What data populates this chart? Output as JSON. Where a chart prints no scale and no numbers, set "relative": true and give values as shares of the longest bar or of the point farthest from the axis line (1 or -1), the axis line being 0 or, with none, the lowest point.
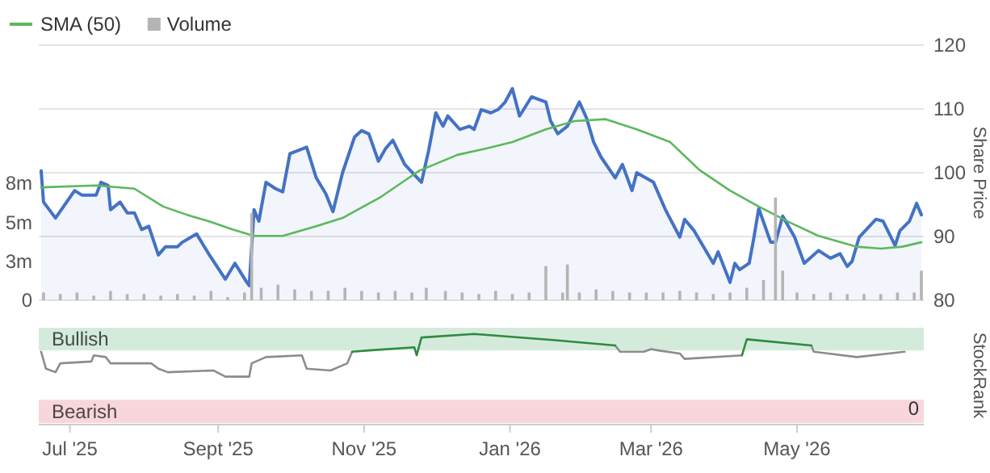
{
  "chart_data": [
    {
      "type": "line",
      "ylabel": "Share Price",
      "xlim": [
        "2025-06-18",
        "2026-06-23"
      ],
      "ylim": [
        80,
        120
      ],
      "yticks": [
        80,
        90,
        100,
        110,
        120
      ],
      "y2lim": [
        0,
        16.4
      ],
      "y2ticks": [
        0,
        {
          "value": 2.5,
          "label": "3m"
        },
        {
          "value": 5,
          "label": "5m"
        },
        {
          "value": 7.5,
          "label": "8m"
        }
      ],
      "grid": "y",
      "legend": "top left",
      "tick_labels": "y",
      "series": [
        {
          "type": "area",
          "color": "#4472c4",
          "x": [
            "2025-06-19",
            "2025-06-20",
            "2025-06-25",
            "2025-07-03",
            "2025-07-06",
            "2025-07-12",
            "2025-07-14",
            "2025-07-17",
            "2025-07-18",
            "2025-07-22",
            "2025-07-25",
            "2025-07-28",
            "2025-07-31",
            "2025-08-03",
            "2025-08-07",
            "2025-08-10",
            "2025-08-15",
            "2025-08-17",
            "2025-08-23",
            "2025-08-28",
            "2025-09-04",
            "2025-09-08",
            "2025-09-13",
            "2025-09-14",
            "2025-09-16",
            "2025-09-18",
            "2025-09-21",
            "2025-09-25",
            "2025-09-28",
            "2025-10-01",
            "2025-10-08",
            "2025-10-12",
            "2025-10-16",
            "2025-10-19",
            "2025-10-23",
            "2025-10-28",
            "2025-10-31",
            "2025-11-03",
            "2025-11-07",
            "2025-11-10",
            "2025-11-13",
            "2025-11-18",
            "2025-11-25",
            "2025-11-28",
            "2025-12-01",
            "2025-12-04",
            "2025-12-06",
            "2025-12-11",
            "2025-12-15",
            "2025-12-17",
            "2025-12-20",
            "2025-12-24",
            "2025-12-27",
            "2025-12-30",
            "2026-01-02",
            "2026-01-05",
            "2026-01-10",
            "2026-01-16",
            "2026-01-18",
            "2026-01-21",
            "2026-01-25",
            "2026-01-30",
            "2026-02-02",
            "2026-02-05",
            "2026-02-08",
            "2026-02-14",
            "2026-02-17",
            "2026-02-21",
            "2026-02-23",
            "2026-03-02",
            "2026-03-07",
            "2026-03-13",
            "2026-03-15",
            "2026-03-19",
            "2026-03-27",
            "2026-03-29",
            "2026-04-03",
            "2026-04-05",
            "2026-04-07",
            "2026-04-11",
            "2026-04-13",
            "2026-04-15",
            "2026-04-20",
            "2026-04-22",
            "2026-04-25",
            "2026-04-30",
            "2026-05-04",
            "2026-05-10",
            "2026-05-15",
            "2026-05-19",
            "2026-05-22",
            "2026-05-24",
            "2026-05-27",
            "2026-06-03",
            "2026-06-06",
            "2026-06-11",
            "2026-06-13",
            "2026-06-17",
            "2026-06-20",
            "2026-06-22"
          ],
          "values": [
            100.3,
            95.4,
            92.9,
            97.2,
            96.5,
            96.5,
            98.5,
            98,
            94.2,
            95.4,
            93.7,
            93.7,
            91.1,
            91.6,
            87.1,
            88.4,
            88.4,
            89.1,
            90.4,
            87.3,
            83.3,
            85.8,
            82.8,
            82.3,
            94.2,
            92.4,
            98.5,
            97.5,
            97,
            103,
            104,
            99.2,
            96.7,
            93.9,
            100,
            105.6,
            106.6,
            106.1,
            101.8,
            103.8,
            105.1,
            101.3,
            98.5,
            103.5,
            109.4,
            107.3,
            108.9,
            106.8,
            107.3,
            106.8,
            109.9,
            109.4,
            109.9,
            111.1,
            113.2,
            108.9,
            111.9,
            111.1,
            108.1,
            106.1,
            107.3,
            111.1,
            108.6,
            104.8,
            102.5,
            99.2,
            101.3,
            97.2,
            100,
            98.5,
            94.2,
            89.9,
            92.7,
            90.9,
            85.8,
            87.6,
            82.8,
            85.8,
            84.8,
            85.8,
            89.9,
            94.4,
            89.1,
            89.1,
            93.2,
            89.9,
            85.8,
            87.8,
            86.6,
            87.3,
            85.3,
            86.1,
            89.9,
            92.7,
            92.4,
            88.6,
            90.9,
            92.4,
            95.2,
            93.4
          ]
        },
        {
          "name": "SMA (50)",
          "color": "#5cb85c",
          "x": [
            "2025-06-19",
            "2025-07-12",
            "2025-07-28",
            "2025-08-09",
            "2025-08-19",
            "2025-08-28",
            "2025-09-07",
            "2025-09-16",
            "2025-09-28",
            "2025-10-12",
            "2025-10-23",
            "2025-11-08",
            "2025-11-24",
            "2025-12-10",
            "2025-12-22",
            "2026-01-02",
            "2026-01-16",
            "2026-01-28",
            "2026-02-10",
            "2026-02-23",
            "2026-03-09",
            "2026-03-21",
            "2026-04-03",
            "2026-04-15",
            "2026-04-28",
            "2026-05-10",
            "2026-05-26",
            "2026-06-05",
            "2026-06-14",
            "2026-06-22"
          ],
          "values": [
            97.7,
            98,
            97.5,
            94.7,
            93.4,
            92.4,
            91.1,
            90.1,
            90.1,
            91.6,
            92.9,
            96.2,
            100.3,
            102.8,
            103.8,
            104.8,
            106.8,
            108.1,
            108.4,
            106.8,
            104.8,
            100.5,
            97.2,
            94.7,
            92.2,
            90.1,
            88.4,
            88.1,
            88.4,
            89.1
          ]
        },
        {
          "type": "bar",
          "name": "Volume",
          "axis": "y2",
          "color": "#b4b4b4",
          "x": [
            "2025-06-20",
            "2025-06-27",
            "2025-07-04",
            "2025-07-11",
            "2025-07-18",
            "2025-07-25",
            "2025-08-01",
            "2025-08-08",
            "2025-08-15",
            "2025-08-22",
            "2025-08-29",
            "2025-09-05",
            "2025-09-12",
            "2025-09-15",
            "2025-09-19",
            "2025-09-26",
            "2025-10-03",
            "2025-10-10",
            "2025-10-17",
            "2025-10-24",
            "2025-10-31",
            "2025-11-07",
            "2025-11-14",
            "2025-11-21",
            "2025-11-27",
            "2025-12-05",
            "2025-12-12",
            "2025-12-19",
            "2025-12-26",
            "2026-01-02",
            "2026-01-09",
            "2026-01-16",
            "2026-01-23",
            "2026-01-25",
            "2026-01-30",
            "2026-02-06",
            "2026-02-13",
            "2026-02-20",
            "2026-02-27",
            "2026-03-06",
            "2026-03-13",
            "2026-03-20",
            "2026-03-27",
            "2026-04-03",
            "2026-04-10",
            "2026-04-17",
            "2026-04-22",
            "2026-04-25",
            "2026-05-01",
            "2026-05-08",
            "2026-05-15",
            "2026-05-22",
            "2026-05-29",
            "2026-06-05",
            "2026-06-12",
            "2026-06-19",
            "2026-06-22"
          ],
          "values": [
            0.5,
            0.4,
            0.5,
            0.3,
            0.6,
            0.4,
            0.4,
            0.3,
            0.4,
            0.3,
            0.6,
            0.2,
            0.5,
            5.6,
            0.8,
            1.0,
            0.7,
            0.6,
            0.6,
            0.8,
            0.6,
            0.5,
            0.6,
            0.5,
            0.8,
            0.6,
            0.5,
            0.4,
            0.6,
            0.4,
            0.5,
            2.2,
            0.5,
            2.3,
            0.5,
            0.7,
            0.6,
            0.5,
            0.5,
            0.5,
            0.6,
            0.5,
            0.4,
            0.5,
            0.8,
            1.3,
            6.6,
            1.9,
            0.5,
            0.4,
            0.5,
            0.4,
            0.4,
            0.4,
            0.5,
            0.5,
            1.9
          ]
        }
      ]
    },
    {
      "type": "line",
      "relative": true,
      "ylabel": "StockRank",
      "xlim": [
        "2025-06-18",
        "2026-06-23"
      ],
      "xticks": [
        {
          "value": "2025-07-01",
          "label": "Jul '25"
        },
        {
          "value": "2025-09-01",
          "label": "Sept '25"
        },
        {
          "value": "2025-11-01",
          "label": "Nov '25"
        },
        {
          "value": "2026-01-01",
          "label": "Jan '26"
        },
        {
          "value": "2026-03-01",
          "label": "Mar '26"
        },
        {
          "value": "2026-05-01",
          "label": "May '26"
        }
      ],
      "x": [
        "2025-06-19",
        "2025-06-21",
        "2025-06-25",
        "2025-06-27",
        "2025-07-10",
        "2025-07-11",
        "2025-07-16",
        "2025-07-18",
        "2025-08-04",
        "2025-08-07",
        "2025-08-11",
        "2025-08-30",
        "2025-09-04",
        "2025-09-14",
        "2025-09-15",
        "2025-09-21",
        "2025-10-06",
        "2025-10-08",
        "2025-10-18",
        "2025-10-25",
        "2025-10-27",
        "2025-11-03",
        "2025-11-22",
        "2025-11-23",
        "2025-11-25",
        "2025-12-17",
        "2025-12-27",
        "2026-01-20",
        "2026-02-14",
        "2026-02-16",
        "2026-02-26",
        "2026-03-01",
        "2026-03-04",
        "2026-03-13",
        "2026-03-15",
        "2026-04-08",
        "2026-04-10",
        "2026-05-07",
        "2026-05-08",
        "2026-05-26",
        "2026-06-15"
      ],
      "bands": [
        {
          "axis": "y",
          "from": 0.815,
          "to": 1.07,
          "label": "Bullish",
          "color": "#d4ebdc"
        },
        {
          "axis": "y",
          "from": 0,
          "to": 0.26,
          "label": "Bearish",
          "color": "#f7d7db"
        }
      ],
      "annotations": [
        "0"
      ],
      "series": [
        {
          "color": "#8c8c8c",
          "values": [
            0.8,
            0.61,
            0.57,
            0.67,
            0.69,
            0.76,
            0.74,
            0.67,
            0.67,
            0.61,
            0.57,
            0.59,
            0.52,
            0.52,
            0.67,
            0.74,
            0.76,
            0.61,
            0.59,
            0.67,
            0.8,
            null,
            null,
            null,
            null,
            null,
            null,
            null,
            0.87,
            0.8,
            0.8,
            0.83,
            0.815,
            0.78,
            0.72,
            0.76,
            null,
            0.87,
            0.8,
            0.74,
            0.8
          ]
        },
        {
          "color": "#2e8b3e",
          "values": [
            null,
            null,
            null,
            null,
            null,
            null,
            null,
            null,
            null,
            null,
            null,
            null,
            null,
            null,
            null,
            null,
            null,
            null,
            null,
            null,
            0.8,
            0.815,
            0.85,
            0.76,
            0.96,
            1.0,
            0.98,
            0.93,
            0.87,
            null,
            null,
            null,
            null,
            null,
            null,
            0.76,
            0.94,
            0.87,
            null,
            null,
            null
          ]
        }
      ]
    }
  ]
}
